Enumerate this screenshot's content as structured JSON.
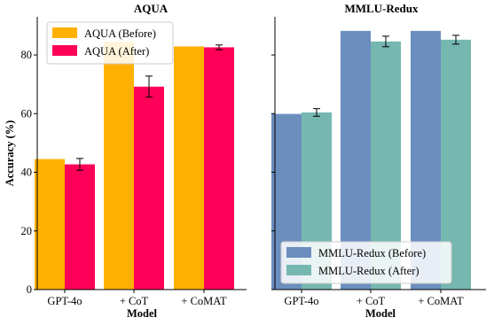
{
  "chart_data": [
    {
      "type": "bar",
      "title": "AQUA",
      "xlabel": "Model",
      "ylabel": "Accuracy (%)",
      "ylim": [
        0,
        93
      ],
      "yticks": [
        0,
        20,
        40,
        60,
        80
      ],
      "categories": [
        "GPT-4o",
        "+ CoT",
        "+ CoMAT"
      ],
      "legend_position": "top-left",
      "series": [
        {
          "name": "AQUA (Before)",
          "color": "#FFB000",
          "values": [
            44.5,
            84.5,
            82.9
          ],
          "errors": [
            0,
            0,
            0
          ]
        },
        {
          "name": "AQUA (After)",
          "color": "#FE0057",
          "values": [
            42.7,
            69.2,
            82.6
          ],
          "errors": [
            2.0,
            3.6,
            0.8
          ]
        }
      ]
    },
    {
      "type": "bar",
      "title": "MMLU-Redux",
      "xlabel": "Model",
      "ylabel": "",
      "ylim": [
        0,
        93
      ],
      "yticks": [
        0,
        20,
        40,
        60,
        80
      ],
      "categories": [
        "GPT-4o",
        "+ CoT",
        "+ CoMAT"
      ],
      "legend_position": "bottom-left",
      "series": [
        {
          "name": "MMLU-Redux (Before)",
          "color": "#6C8EBF",
          "values": [
            59.9,
            88.2,
            88.2
          ],
          "errors": [
            0,
            0,
            0
          ]
        },
        {
          "name": "MMLU-Redux (After)",
          "color": "#76B7B0",
          "values": [
            60.4,
            84.6,
            85.2
          ],
          "errors": [
            1.3,
            1.8,
            1.5
          ]
        }
      ]
    }
  ]
}
